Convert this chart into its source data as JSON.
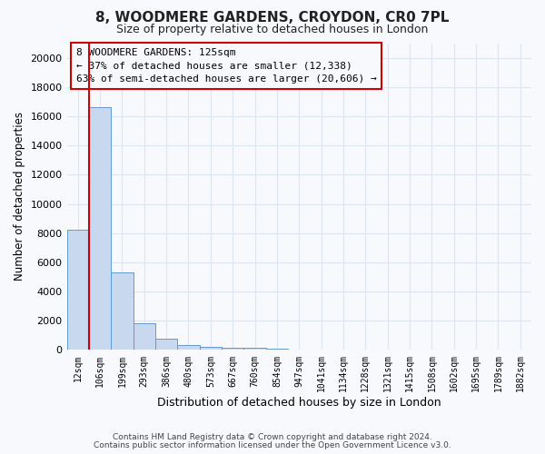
{
  "title": "8, WOODMERE GARDENS, CROYDON, CR0 7PL",
  "subtitle": "Size of property relative to detached houses in London",
  "xlabel": "Distribution of detached houses by size in London",
  "ylabel": "Number of detached properties",
  "bar_color": "#c8d8ee",
  "bar_edge_color": "#6699cc",
  "property_line_color": "#cc0000",
  "annotation_text": "8 WOODMERE GARDENS: 125sqm\n← 37% of detached houses are smaller (12,338)\n63% of semi-detached houses are larger (20,606) →",
  "annotation_edge_color": "#cc0000",
  "categories": [
    "12sqm",
    "106sqm",
    "199sqm",
    "293sqm",
    "386sqm",
    "480sqm",
    "573sqm",
    "667sqm",
    "760sqm",
    "854sqm",
    "947sqm",
    "1041sqm",
    "1134sqm",
    "1228sqm",
    "1321sqm",
    "1415sqm",
    "1508sqm",
    "1602sqm",
    "1695sqm",
    "1789sqm",
    "1882sqm"
  ],
  "values": [
    8200,
    16600,
    5300,
    1850,
    800,
    330,
    200,
    175,
    150,
    80,
    0,
    0,
    0,
    0,
    0,
    0,
    0,
    0,
    0,
    0,
    0
  ],
  "ylim": [
    0,
    21000
  ],
  "yticks": [
    0,
    2000,
    4000,
    6000,
    8000,
    10000,
    12000,
    14000,
    16000,
    18000,
    20000
  ],
  "vline_x": 0.5,
  "footnote_line1": "Contains HM Land Registry data © Crown copyright and database right 2024.",
  "footnote_line2": "Contains public sector information licensed under the Open Government Licence v3.0.",
  "background_color": "#f8f9fc",
  "grid_color": "#dde5f0"
}
